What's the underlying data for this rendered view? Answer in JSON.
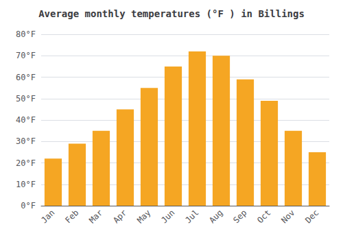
{
  "chart_data": {
    "type": "bar",
    "title": "Average monthly temperatures (°F ) in Billings",
    "categories": [
      "Jan",
      "Feb",
      "Mar",
      "Apr",
      "May",
      "Jun",
      "Jul",
      "Aug",
      "Sep",
      "Oct",
      "Nov",
      "Dec"
    ],
    "values": [
      22,
      29,
      35,
      45,
      55,
      65,
      72,
      70,
      59,
      49,
      35,
      25
    ],
    "color": "#F5A623",
    "ylim": [
      0,
      80
    ],
    "yticks": [
      {
        "value": 0,
        "label": "0°F"
      },
      {
        "value": 10,
        "label": "10°F"
      },
      {
        "value": 20,
        "label": "20°F"
      },
      {
        "value": 30,
        "label": "30°F"
      },
      {
        "value": 40,
        "label": "40°F"
      },
      {
        "value": 50,
        "label": "50°F"
      },
      {
        "value": 60,
        "label": "60°F"
      },
      {
        "value": 70,
        "label": "70°F"
      },
      {
        "value": 80,
        "label": "80°F"
      }
    ],
    "grid": true
  }
}
